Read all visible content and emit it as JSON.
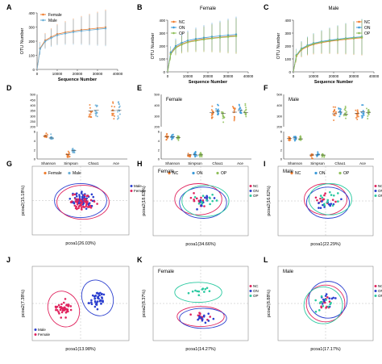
{
  "colors": {
    "Female": "#f07d2e",
    "Male": "#6aaed6",
    "NC": "#f07d2e",
    "ON": "#3a9ad9",
    "OP": "#8fbf5a",
    "pca_female": "#e0245e",
    "pca_male": "#2b3fcf",
    "pca_NC": "#e0245e",
    "pca_ON": "#2b3fcf",
    "pca_OP": "#29c9a0"
  },
  "chart_data": [
    {
      "id": "A",
      "type": "line",
      "panel_label": "A",
      "xlabel": "Sequence Number",
      "ylabel": "OTU Number",
      "xlim": [
        0,
        40000
      ],
      "ylim": [
        0,
        400
      ],
      "xticks": [
        "0",
        "10000",
        "20000",
        "30000",
        "40000"
      ],
      "yticks": [
        "0",
        "100",
        "200",
        "300",
        "400"
      ],
      "legend": [
        "Female",
        "Male"
      ],
      "legend_position": "top-left",
      "x": [
        0,
        1500,
        4000,
        7000,
        10000,
        14000,
        18000,
        22000,
        26000,
        30000,
        34000
      ],
      "series": [
        {
          "name": "Female",
          "values": [
            0,
            150,
            205,
            230,
            250,
            262,
            272,
            280,
            286,
            292,
            298
          ]
        },
        {
          "name": "Male",
          "values": [
            0,
            145,
            198,
            222,
            242,
            254,
            264,
            272,
            278,
            284,
            290
          ]
        }
      ]
    },
    {
      "id": "B",
      "type": "line",
      "panel_label": "B",
      "title": "Female",
      "xlabel": "Sequence Number",
      "ylabel": "OTU Number",
      "xlim": [
        0,
        40000
      ],
      "ylim": [
        0,
        400
      ],
      "xticks": [
        "0",
        "10000",
        "20000",
        "30000",
        "40000"
      ],
      "yticks": [
        "0",
        "100",
        "200",
        "300",
        "400"
      ],
      "legend": [
        "NC",
        "ON",
        "OP"
      ],
      "legend_position": "top-left",
      "x": [
        0,
        1500,
        4000,
        7000,
        10000,
        14000,
        18000,
        22000,
        26000,
        30000,
        34000
      ],
      "series": [
        {
          "name": "NC",
          "values": [
            0,
            140,
            190,
            215,
            232,
            245,
            255,
            262,
            268,
            274,
            280
          ]
        },
        {
          "name": "ON",
          "values": [
            0,
            150,
            200,
            225,
            242,
            255,
            264,
            272,
            278,
            284,
            290
          ]
        },
        {
          "name": "OP",
          "values": [
            0,
            135,
            185,
            210,
            228,
            240,
            250,
            258,
            265,
            270,
            276
          ]
        }
      ]
    },
    {
      "id": "C",
      "type": "line",
      "panel_label": "C",
      "title": "Male",
      "xlabel": "Sequence Number",
      "ylabel": "OTU Number",
      "xlim": [
        0,
        40000
      ],
      "ylim": [
        0,
        400
      ],
      "xticks": [
        "0",
        "10000",
        "20000",
        "30000",
        "40000"
      ],
      "yticks": [
        "0",
        "100",
        "200",
        "300",
        "400"
      ],
      "legend": [
        "NC",
        "ON",
        "OP"
      ],
      "legend_position": "top-right",
      "x": [
        0,
        1500,
        4000,
        7000,
        10000,
        14000,
        18000,
        22000,
        26000,
        30000,
        34000
      ],
      "series": [
        {
          "name": "NC",
          "values": [
            0,
            120,
            170,
            195,
            212,
            226,
            236,
            244,
            252,
            258,
            264
          ]
        },
        {
          "name": "ON",
          "values": [
            0,
            130,
            180,
            205,
            222,
            235,
            245,
            253,
            260,
            266,
            272
          ]
        },
        {
          "name": "OP",
          "values": [
            0,
            125,
            175,
            200,
            217,
            230,
            240,
            248,
            256,
            262,
            268
          ]
        }
      ]
    },
    {
      "id": "D",
      "type": "scatter",
      "panel_label": "D",
      "categories": [
        "Shannon",
        "Simpson",
        "Chao1",
        "Ace"
      ],
      "yticks_upper": [
        "200",
        "250",
        "300",
        "350",
        "400",
        "450",
        "500"
      ],
      "yticks_lower": [
        "0",
        "2",
        "4",
        "6"
      ],
      "legend": [
        "Female",
        "Male"
      ],
      "legend_position": "bottom",
      "groups": [
        {
          "name": "Female",
          "values": [
            5.0,
            0.95,
            345,
            350
          ]
        },
        {
          "name": "Male",
          "values": [
            4.6,
            1.9,
            352,
            355
          ]
        }
      ]
    },
    {
      "id": "E",
      "type": "scatter",
      "panel_label": "E",
      "title": "Female",
      "categories": [
        "Shannon",
        "Simpson",
        "Chao1",
        "Ace"
      ],
      "yticks_upper": [
        "200",
        "300",
        "400",
        "500"
      ],
      "yticks_lower": [
        "0",
        "2",
        "4",
        "6"
      ],
      "legend": [
        "NC",
        "ON",
        "OP"
      ],
      "legend_position": "bottom",
      "groups": [
        {
          "name": "NC",
          "values": [
            4.8,
            0.9,
            330,
            335
          ]
        },
        {
          "name": "ON",
          "values": [
            4.9,
            0.92,
            345,
            350
          ]
        },
        {
          "name": "OP",
          "values": [
            4.7,
            0.9,
            325,
            330
          ]
        }
      ]
    },
    {
      "id": "F",
      "type": "scatter",
      "panel_label": "F",
      "title": "Male",
      "categories": [
        "Shannon",
        "Simpson",
        "Chao1",
        "Ace"
      ],
      "yticks_upper": [
        "200",
        "300",
        "400",
        "500"
      ],
      "yticks_lower": [
        "0",
        "2",
        "4",
        "6"
      ],
      "legend": [
        "NC",
        "ON",
        "OP"
      ],
      "legend_position": "bottom",
      "groups": [
        {
          "name": "NC",
          "values": [
            4.5,
            0.88,
            320,
            325
          ]
        },
        {
          "name": "ON",
          "values": [
            4.6,
            0.9,
            335,
            340
          ]
        },
        {
          "name": "OP",
          "values": [
            4.4,
            0.87,
            315,
            330
          ]
        }
      ]
    },
    {
      "id": "G",
      "type": "scatter",
      "panel_label": "G",
      "xlabel": "pcoa1(26.03%)",
      "ylabel": "pcoa2(15.18%)",
      "legend": [
        "Male",
        "Female"
      ],
      "legend_position": "right",
      "points_per_group": 55,
      "spread": [
        0.6,
        0.55
      ],
      "groups": [
        {
          "name": "Male",
          "center": [
            0.0,
            0.0
          ]
        },
        {
          "name": "Female",
          "center": [
            0.05,
            -0.05
          ]
        }
      ]
    },
    {
      "id": "H",
      "type": "scatter",
      "panel_label": "H",
      "title": "Female",
      "xlabel": "pcoa1(34.66%)",
      "ylabel": "pcoa2(18.63%)",
      "legend": [
        "NC",
        "ON",
        "OP"
      ],
      "legend_position": "right",
      "points_per_group": 12,
      "spread": [
        0.55,
        0.5
      ],
      "groups": [
        {
          "name": "NC",
          "center": [
            -0.05,
            0.05
          ]
        },
        {
          "name": "ON",
          "center": [
            0.05,
            -0.05
          ]
        },
        {
          "name": "OP",
          "center": [
            0.1,
            0.0
          ]
        }
      ]
    },
    {
      "id": "I",
      "type": "scatter",
      "panel_label": "I",
      "title": "Male",
      "xlabel": "pcoa1(22.29%)",
      "ylabel": "pcoa2(16.62%)",
      "legend": [
        "NC",
        "ON",
        "OP"
      ],
      "legend_position": "right",
      "points_per_group": 12,
      "spread": [
        0.5,
        0.5
      ],
      "groups": [
        {
          "name": "NC",
          "center": [
            0.0,
            0.05
          ]
        },
        {
          "name": "ON",
          "center": [
            0.05,
            -0.05
          ]
        },
        {
          "name": "OP",
          "center": [
            0.1,
            0.05
          ]
        }
      ]
    },
    {
      "id": "J",
      "type": "scatter",
      "panel_label": "J",
      "xlabel": "pcoa1(13.98%)",
      "ylabel": "pcoa2(7.38%)",
      "legend": [
        "Male",
        "Female"
      ],
      "legend_position": "bottom-left",
      "points_per_group": 45,
      "spread": [
        0.35,
        0.55
      ],
      "groups": [
        {
          "name": "Male",
          "center": [
            0.35,
            0.15
          ]
        },
        {
          "name": "Female",
          "center": [
            -0.35,
            -0.15
          ]
        }
      ]
    },
    {
      "id": "K",
      "type": "scatter",
      "panel_label": "K",
      "title": "Female",
      "xlabel": "pcoa1(14.27%)",
      "ylabel": "pcoa2(8.37%)",
      "legend": [
        "NC",
        "ON",
        "OP"
      ],
      "legend_position": "right",
      "points_per_group": 12,
      "spread": [
        0.55,
        0.3
      ],
      "groups": [
        {
          "name": "NC",
          "center": [
            0.0,
            -0.35
          ]
        },
        {
          "name": "ON",
          "center": [
            0.05,
            -0.4
          ]
        },
        {
          "name": "OP",
          "center": [
            -0.05,
            0.3
          ]
        }
      ]
    },
    {
      "id": "L",
      "type": "scatter",
      "panel_label": "L",
      "title": "Male",
      "xlabel": "pcoa1(17.17%)",
      "ylabel": "pcoa2(8.88%)",
      "legend": [
        "NC",
        "ON",
        "OP"
      ],
      "legend_position": "right",
      "points_per_group": 12,
      "spread": [
        0.45,
        0.55
      ],
      "groups": [
        {
          "name": "NC",
          "center": [
            0.0,
            0.0
          ]
        },
        {
          "name": "ON",
          "center": [
            0.05,
            0.1
          ]
        },
        {
          "name": "OP",
          "center": [
            -0.05,
            -0.05
          ]
        }
      ]
    }
  ]
}
